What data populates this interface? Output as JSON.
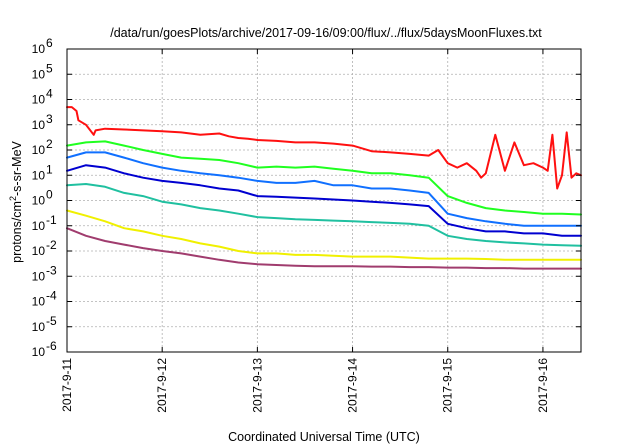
{
  "chart_data": {
    "type": "line",
    "title": "/data/run/goesPlots/archive/2017-09-16/09:00/flux/../flux/5daysMoonFluxes.txt",
    "xlabel": "Coordinated Universal Time (UTC)",
    "ylabel_parts": {
      "base": "protons/cm",
      "sup": "2",
      "rest": "-s-sr-MeV"
    },
    "y_scale": "log",
    "ylim": [
      1e-06,
      1000000.0
    ],
    "xlim": [
      0,
      5.4
    ],
    "x_ticks": [
      {
        "value": 0,
        "label": "2017-9-11"
      },
      {
        "value": 1,
        "label": "2017-9-12"
      },
      {
        "value": 2,
        "label": "2017-9-13"
      },
      {
        "value": 3,
        "label": "2017-9-14"
      },
      {
        "value": 4,
        "label": "2017-9-15"
      },
      {
        "value": 5,
        "label": "2017-9-16"
      }
    ],
    "y_ticks": [
      {
        "value": -6,
        "base": "10",
        "exp": "-6"
      },
      {
        "value": -5,
        "base": "10",
        "exp": "-5"
      },
      {
        "value": -4,
        "base": "10",
        "exp": "-4"
      },
      {
        "value": -3,
        "base": "10",
        "exp": "-3"
      },
      {
        "value": -2,
        "base": "10",
        "exp": "-2"
      },
      {
        "value": -1,
        "base": "10",
        "exp": "-1"
      },
      {
        "value": 0,
        "base": "10",
        "exp": "0"
      },
      {
        "value": 1,
        "base": "10",
        "exp": "1"
      },
      {
        "value": 2,
        "base": "10",
        "exp": "2"
      },
      {
        "value": 3,
        "base": "10",
        "exp": "3"
      },
      {
        "value": 4,
        "base": "10",
        "exp": "4"
      },
      {
        "value": 5,
        "base": "10",
        "exp": "5"
      },
      {
        "value": 6,
        "base": "10",
        "exp": "6"
      }
    ],
    "grid": true,
    "series": [
      {
        "color": "#ff1010",
        "x": [
          0,
          0.05,
          0.1,
          0.12,
          0.2,
          0.28,
          0.3,
          0.4,
          0.6,
          0.8,
          1.0,
          1.2,
          1.4,
          1.6,
          1.7,
          1.8,
          1.9,
          2.0,
          2.2,
          2.4,
          2.6,
          2.8,
          3.0,
          3.2,
          3.4,
          3.6,
          3.8,
          3.9,
          4.0,
          4.1,
          4.2,
          4.3,
          4.35,
          4.4,
          4.5,
          4.6,
          4.7,
          4.8,
          4.9,
          5.0,
          5.05,
          5.1,
          5.15,
          5.2,
          5.25,
          5.3,
          5.35,
          5.4
        ],
        "y": [
          5000,
          5000,
          3500,
          1500,
          1000,
          400,
          600,
          700,
          650,
          600,
          550,
          500,
          400,
          450,
          350,
          300,
          280,
          250,
          230,
          200,
          200,
          180,
          150,
          90,
          80,
          70,
          60,
          100,
          30,
          20,
          30,
          15,
          8,
          12,
          400,
          15,
          200,
          25,
          30,
          20,
          15,
          400,
          3,
          10,
          500,
          8,
          12,
          10
        ]
      },
      {
        "color": "#20ff20",
        "x": [
          0,
          0.2,
          0.4,
          0.6,
          0.8,
          1.0,
          1.2,
          1.4,
          1.6,
          1.8,
          2.0,
          2.2,
          2.4,
          2.6,
          2.8,
          3.0,
          3.2,
          3.4,
          3.6,
          3.8,
          4.0,
          4.2,
          4.4,
          4.6,
          4.8,
          5.0,
          5.2,
          5.4
        ],
        "y": [
          150,
          200,
          220,
          150,
          100,
          70,
          50,
          45,
          40,
          30,
          20,
          22,
          20,
          22,
          18,
          15,
          12,
          12,
          10,
          8,
          1.5,
          0.8,
          0.5,
          0.4,
          0.35,
          0.3,
          0.3,
          0.28
        ]
      },
      {
        "color": "#1070ff",
        "x": [
          0,
          0.2,
          0.4,
          0.6,
          0.8,
          1.0,
          1.2,
          1.4,
          1.6,
          1.8,
          2.0,
          2.2,
          2.4,
          2.6,
          2.8,
          3.0,
          3.2,
          3.4,
          3.6,
          3.8,
          4.0,
          4.2,
          4.4,
          4.6,
          4.8,
          5.0,
          5.2,
          5.4
        ],
        "y": [
          50,
          80,
          80,
          50,
          30,
          20,
          15,
          12,
          10,
          8,
          6,
          5,
          5,
          6,
          4,
          4,
          3,
          3,
          2.5,
          2,
          0.3,
          0.2,
          0.15,
          0.12,
          0.1,
          0.1,
          0.1,
          0.1
        ]
      },
      {
        "color": "#0000d0",
        "x": [
          0,
          0.2,
          0.4,
          0.6,
          0.8,
          1.0,
          1.2,
          1.4,
          1.6,
          1.8,
          2.0,
          2.2,
          2.4,
          2.6,
          2.8,
          3.0,
          3.2,
          3.4,
          3.6,
          3.8,
          4.0,
          4.2,
          4.4,
          4.6,
          4.8,
          5.0,
          5.2,
          5.4
        ],
        "y": [
          15,
          25,
          20,
          12,
          8,
          6,
          5,
          4,
          3,
          2.5,
          1.5,
          1.4,
          1.3,
          1.2,
          1.1,
          1.0,
          0.9,
          0.8,
          0.7,
          0.6,
          0.12,
          0.08,
          0.06,
          0.06,
          0.05,
          0.05,
          0.04,
          0.04
        ]
      },
      {
        "color": "#20c0a0",
        "x": [
          0,
          0.2,
          0.4,
          0.6,
          0.8,
          1.0,
          1.2,
          1.4,
          1.6,
          1.8,
          2.0,
          2.2,
          2.4,
          2.6,
          2.8,
          3.0,
          3.2,
          3.4,
          3.6,
          3.8,
          4.0,
          4.2,
          4.4,
          4.6,
          4.8,
          5.0,
          5.2,
          5.4
        ],
        "y": [
          4,
          4.5,
          3.5,
          2,
          1.5,
          0.9,
          0.7,
          0.5,
          0.4,
          0.3,
          0.22,
          0.2,
          0.18,
          0.17,
          0.16,
          0.15,
          0.14,
          0.13,
          0.12,
          0.1,
          0.04,
          0.03,
          0.025,
          0.022,
          0.02,
          0.018,
          0.017,
          0.016
        ]
      },
      {
        "color": "#f0f000",
        "x": [
          0,
          0.2,
          0.4,
          0.6,
          0.8,
          1.0,
          1.2,
          1.4,
          1.6,
          1.8,
          2.0,
          2.2,
          2.4,
          2.6,
          2.8,
          3.0,
          3.2,
          3.4,
          3.6,
          3.8,
          4.0,
          4.2,
          4.4,
          4.6,
          4.8,
          5.0,
          5.2,
          5.4
        ],
        "y": [
          0.4,
          0.25,
          0.15,
          0.08,
          0.06,
          0.04,
          0.03,
          0.02,
          0.015,
          0.01,
          0.008,
          0.008,
          0.007,
          0.007,
          0.0065,
          0.006,
          0.006,
          0.006,
          0.0055,
          0.005,
          0.005,
          0.005,
          0.0048,
          0.0045,
          0.0045,
          0.0045,
          0.0045,
          0.0045
        ]
      },
      {
        "color": "#a03c6e",
        "x": [
          0,
          0.2,
          0.4,
          0.6,
          0.8,
          1.0,
          1.2,
          1.4,
          1.6,
          1.8,
          2.0,
          2.2,
          2.4,
          2.6,
          2.8,
          3.0,
          3.2,
          3.4,
          3.6,
          3.8,
          4.0,
          4.2,
          4.4,
          4.6,
          4.8,
          5.0,
          5.2,
          5.4
        ],
        "y": [
          0.08,
          0.04,
          0.025,
          0.018,
          0.013,
          0.01,
          0.008,
          0.006,
          0.0045,
          0.0035,
          0.003,
          0.0028,
          0.0026,
          0.0025,
          0.0025,
          0.0025,
          0.0024,
          0.0024,
          0.0023,
          0.0023,
          0.0022,
          0.0022,
          0.0021,
          0.0021,
          0.002,
          0.002,
          0.002,
          0.002
        ]
      }
    ]
  }
}
